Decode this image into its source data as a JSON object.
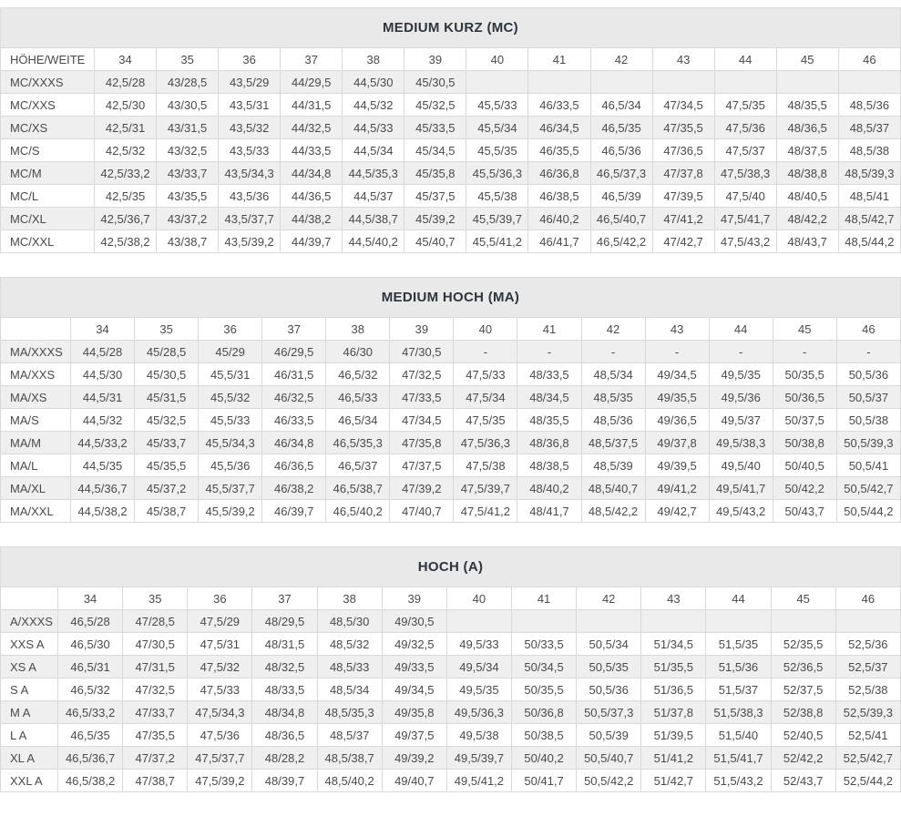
{
  "tables": [
    {
      "title": "MEDIUM KURZ (MC)",
      "corner_label": "HÖHE/WEITE",
      "columns": [
        "34",
        "35",
        "36",
        "37",
        "38",
        "39",
        "40",
        "41",
        "42",
        "43",
        "44",
        "45",
        "46"
      ],
      "rows": [
        {
          "label": "MC/XXXS",
          "values": [
            "42,5/28",
            "43/28,5",
            "43,5/29",
            "44/29,5",
            "44,5/30",
            "45/30,5",
            "",
            "",
            "",
            "",
            "",
            "",
            ""
          ]
        },
        {
          "label": "MC/XXS",
          "values": [
            "42,5/30",
            "43/30,5",
            "43,5/31",
            "44/31,5",
            "44,5/32",
            "45/32,5",
            "45,5/33",
            "46/33,5",
            "46,5/34",
            "47/34,5",
            "47,5/35",
            "48/35,5",
            "48,5/36"
          ]
        },
        {
          "label": "MC/XS",
          "values": [
            "42,5/31",
            "43/31,5",
            "43,5/32",
            "44/32,5",
            "44,5/33",
            "45/33,5",
            "45,5/34",
            "46/34,5",
            "46,5/35",
            "47/35,5",
            "47,5/36",
            "48/36,5",
            "48,5/37"
          ]
        },
        {
          "label": "MC/S",
          "values": [
            "42,5/32",
            "43/32,5",
            "43,5/33",
            "44/33,5",
            "44,5/34",
            "45/34,5",
            "45,5/35",
            "46/35,5",
            "46,5/36",
            "47/36,5",
            "47,5/37",
            "48/37,5",
            "48,5/38"
          ]
        },
        {
          "label": "MC/M",
          "values": [
            "42,5/33,2",
            "43/33,7",
            "43,5/34,3",
            "44/34,8",
            "44,5/35,3",
            "45/35,8",
            "45,5/36,3",
            "46/36,8",
            "46,5/37,3",
            "47/37,8",
            "47,5/38,3",
            "48/38,8",
            "48,5/39,3"
          ]
        },
        {
          "label": "MC/L",
          "values": [
            "42,5/35",
            "43/35,5",
            "43,5/36",
            "44/36,5",
            "44,5/37",
            "45/37,5",
            "45,5/38",
            "46/38,5",
            "46,5/39",
            "47/39,5",
            "47,5/40",
            "48/40,5",
            "48,5/41"
          ]
        },
        {
          "label": "MC/XL",
          "values": [
            "42,5/36,7",
            "43/37,2",
            "43,5/37,7",
            "44/38,2",
            "44,5/38,7",
            "45/39,2",
            "45,5/39,7",
            "46/40,2",
            "46,5/40,7",
            "47/41,2",
            "47,5/41,7",
            "48/42,2",
            "48,5/42,7"
          ]
        },
        {
          "label": "MC/XXL",
          "values": [
            "42,5/38,2",
            "43/38,7",
            "43,5/39,2",
            "44/39,7",
            "44,5/40,2",
            "45/40,7",
            "45,5/41,2",
            "46/41,7",
            "46,5/42,2",
            "47/42,7",
            "47,5/43,2",
            "48/43,7",
            "48,5/44,2"
          ]
        }
      ]
    },
    {
      "title": "MEDIUM HOCH (MA)",
      "corner_label": "",
      "columns": [
        "34",
        "35",
        "36",
        "37",
        "38",
        "39",
        "40",
        "41",
        "42",
        "43",
        "44",
        "45",
        "46"
      ],
      "rows": [
        {
          "label": "MA/XXXS",
          "values": [
            "44,5/28",
            "45/28,5",
            "45/29",
            "46/29,5",
            "46/30",
            "47/30,5",
            "-",
            "-",
            "-",
            "-",
            "-",
            "-",
            "-"
          ]
        },
        {
          "label": "MA/XXS",
          "values": [
            "44,5/30",
            "45/30,5",
            "45,5/31",
            "46/31,5",
            "46,5/32",
            "47/32,5",
            "47,5/33",
            "48/33,5",
            "48,5/34",
            "49/34,5",
            "49,5/35",
            "50/35,5",
            "50,5/36"
          ]
        },
        {
          "label": "MA/XS",
          "values": [
            "44,5/31",
            "45/31,5",
            "45,5/32",
            "46/32,5",
            "46,5/33",
            "47/33,5",
            "47,5/34",
            "48/34,5",
            "48,5/35",
            "49/35,5",
            "49,5/36",
            "50/36,5",
            "50,5/37"
          ]
        },
        {
          "label": "MA/S",
          "values": [
            "44,5/32",
            "45/32,5",
            "45,5/33",
            "46/33,5",
            "46,5/34",
            "47/34,5",
            "47,5/35",
            "48/35,5",
            "48,5/36",
            "49/36,5",
            "49,5/37",
            "50/37,5",
            "50,5/38"
          ]
        },
        {
          "label": "MA/M",
          "values": [
            "44,5/33,2",
            "45/33,7",
            "45,5/34,3",
            "46/34,8",
            "46,5/35,3",
            "47/35,8",
            "47,5/36,3",
            "48/36,8",
            "48,5/37,5",
            "49/37,8",
            "49,5/38,3",
            "50/38,8",
            "50,5/39,3"
          ]
        },
        {
          "label": "MA/L",
          "values": [
            "44,5/35",
            "45/35,5",
            "45,5/36",
            "46/36,5",
            "46,5/37",
            "47/37,5",
            "47,5/38",
            "48/38,5",
            "48,5/39",
            "49/39,5",
            "49,5/40",
            "50/40,5",
            "50,5/41"
          ]
        },
        {
          "label": "MA/XL",
          "values": [
            "44,5/36,7",
            "45/37,2",
            "45,5/37,7",
            "46/38,2",
            "46,5/38,7",
            "47/39,2",
            "47,5/39,7",
            "48/40,2",
            "48,5/40,7",
            "49/41,2",
            "49,5/41,7",
            "50/42,2",
            "50,5/42,7"
          ]
        },
        {
          "label": "MA/XXL",
          "values": [
            "44,5/38,2",
            "45/38,7",
            "45,5/39,2",
            "46/39,7",
            "46,5/40,2",
            "47/40,7",
            "47,5/41,2",
            "48/41,7",
            "48,5/42,2",
            "49/42,7",
            "49,5/43,2",
            "50/43,7",
            "50,5/44,2"
          ]
        }
      ]
    },
    {
      "title": "HOCH (A)",
      "corner_label": "",
      "columns": [
        "34",
        "35",
        "36",
        "37",
        "38",
        "39",
        "40",
        "41",
        "42",
        "43",
        "44",
        "45",
        "46"
      ],
      "rows": [
        {
          "label": "A/XXXS",
          "values": [
            "46,5/28",
            "47/28,5",
            "47,5/29",
            "48/29,5",
            "48,5/30",
            "49/30,5",
            "",
            "",
            "",
            "",
            "",
            "",
            ""
          ]
        },
        {
          "label": "XXS A",
          "values": [
            "46,5/30",
            "47/30,5",
            "47,5/31",
            "48/31,5",
            "48,5/32",
            "49/32,5",
            "49,5/33",
            "50/33,5",
            "50,5/34",
            "51/34,5",
            "51,5/35",
            "52/35,5",
            "52,5/36"
          ]
        },
        {
          "label": "XS A",
          "values": [
            "46,5/31",
            "47/31,5",
            "47,5/32",
            "48/32,5",
            "48,5/33",
            "49/33,5",
            "49,5/34",
            "50/34,5",
            "50,5/35",
            "51/35,5",
            "51,5/36",
            "52/36,5",
            "52,5/37"
          ]
        },
        {
          "label": "S A",
          "values": [
            "46,5/32",
            "47/32,5",
            "47,5/33",
            "48/33,5",
            "48,5/34",
            "49/34,5",
            "49,5/35",
            "50/35,5",
            "50,5/36",
            "51/36,5",
            "51,5/37",
            "52/37,5",
            "52,5/38"
          ]
        },
        {
          "label": "M A",
          "values": [
            "46,5/33,2",
            "47/33,7",
            "47,5/34,3",
            "48/34,8",
            "48,5/35,3",
            "49/35,8",
            "49,5/36,3",
            "50/36,8",
            "50,5/37,3",
            "51/37,8",
            "51,5/38,3",
            "52/38,8",
            "52,5/39,3"
          ]
        },
        {
          "label": "L A",
          "values": [
            "46,5/35",
            "47/35,5",
            "47,5/36",
            "48/36,5",
            "48,5/37",
            "49/37,5",
            "49,5/38",
            "50/38,5",
            "50,5/39",
            "51/39,5",
            "51,5/40",
            "52/40,5",
            "52,5/41"
          ]
        },
        {
          "label": "XL A",
          "values": [
            "46,5/36,7",
            "47/37,2",
            "47,5/37,7",
            "48/28,2",
            "48,5/38,7",
            "49/39,2",
            "49,5/39,7",
            "50/40,2",
            "50,5/40,7",
            "51/41,2",
            "51,5/41,7",
            "52/42,2",
            "52,5/42,7"
          ]
        },
        {
          "label": "XXL A",
          "values": [
            "46,5/38,2",
            "47/38,7",
            "47,5/39,2",
            "48/39,7",
            "48,5/40,2",
            "49/40,7",
            "49,5/41,2",
            "50/41,7",
            "50,5/42,2",
            "51/42,7",
            "51,5/43,2",
            "52/43,7",
            "52,5/44,2"
          ]
        }
      ]
    }
  ]
}
